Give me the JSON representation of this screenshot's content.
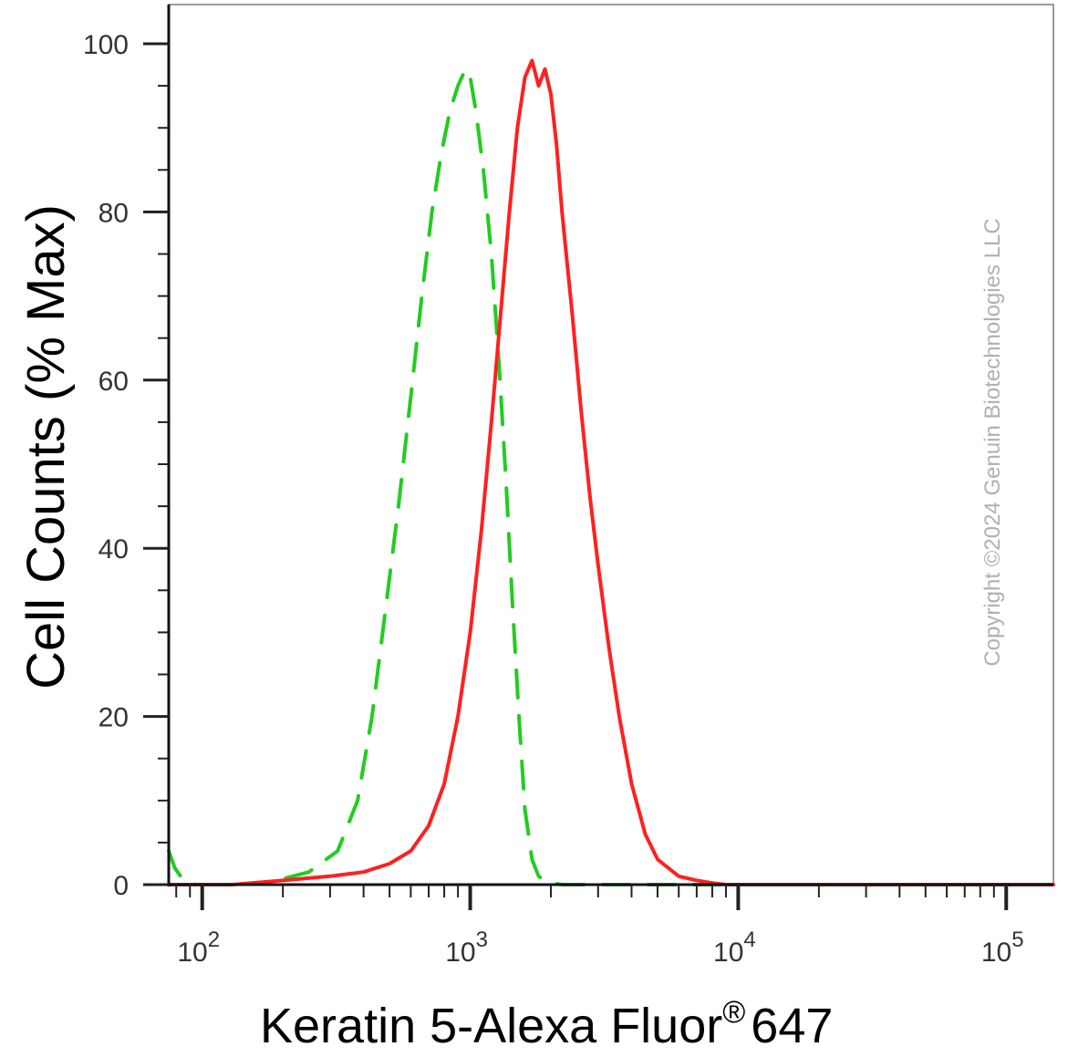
{
  "chart_data": {
    "type": "line",
    "title": "",
    "xlabel": "Keratin 5-Alexa Fluor",
    "xlabel_superscript": "®",
    "xlabel_suffix": "647",
    "ylabel": "Cell Counts (% Max)",
    "x_scale": "log",
    "xlim": [
      75,
      150000
    ],
    "ylim": [
      0,
      105
    ],
    "x_ticks": [
      {
        "value": 100,
        "base": "10",
        "exp": "2"
      },
      {
        "value": 1000,
        "base": "10",
        "exp": "3"
      },
      {
        "value": 10000,
        "base": "10",
        "exp": "4"
      },
      {
        "value": 100000,
        "base": "10",
        "exp": "5"
      }
    ],
    "y_ticks": [
      0,
      20,
      40,
      60,
      80,
      100
    ],
    "grid": false,
    "series": [
      {
        "color": "#22cc22",
        "style": "dashed",
        "x": [
          75,
          79,
          85,
          95,
          130,
          180,
          250,
          320,
          380,
          430,
          480,
          540,
          600,
          660,
          720,
          780,
          840,
          900,
          960,
          1000,
          1050,
          1120,
          1200,
          1280,
          1360,
          1440,
          1520,
          1600,
          1700,
          1800,
          1900,
          2000,
          2200,
          2500,
          3000,
          5000,
          10000,
          30000,
          100000,
          150000
        ],
        "y": [
          4,
          2,
          0.5,
          0,
          0,
          0.3,
          1.5,
          4,
          10,
          20,
          32,
          45,
          58,
          70,
          80,
          87,
          92,
          95,
          97,
          96,
          92,
          85,
          75,
          62,
          48,
          33,
          20,
          9,
          3,
          1,
          0.5,
          0.2,
          0,
          0,
          0,
          0,
          0,
          0,
          0,
          0
        ]
      },
      {
        "color": "#ff2020",
        "style": "solid",
        "x": [
          75,
          130,
          200,
          300,
          400,
          500,
          600,
          700,
          800,
          900,
          1000,
          1100,
          1200,
          1300,
          1400,
          1500,
          1600,
          1700,
          1800,
          1900,
          2000,
          2100,
          2200,
          2400,
          2600,
          2800,
          3000,
          3300,
          3600,
          4000,
          4500,
          5000,
          6000,
          7000,
          8000,
          9000,
          10000,
          20000,
          50000,
          100000,
          150000
        ],
        "y": [
          0,
          0,
          0.5,
          1,
          1.5,
          2.5,
          4,
          7,
          12,
          20,
          30,
          42,
          55,
          68,
          80,
          90,
          96,
          98,
          95,
          97,
          94,
          88,
          80,
          68,
          56,
          46,
          38,
          28,
          20,
          12,
          6,
          3,
          1,
          0.5,
          0.2,
          0,
          0,
          0,
          0,
          0,
          0
        ]
      }
    ]
  },
  "watermark": "Copyright ©2024 Genuin Biotechnologies LLC"
}
